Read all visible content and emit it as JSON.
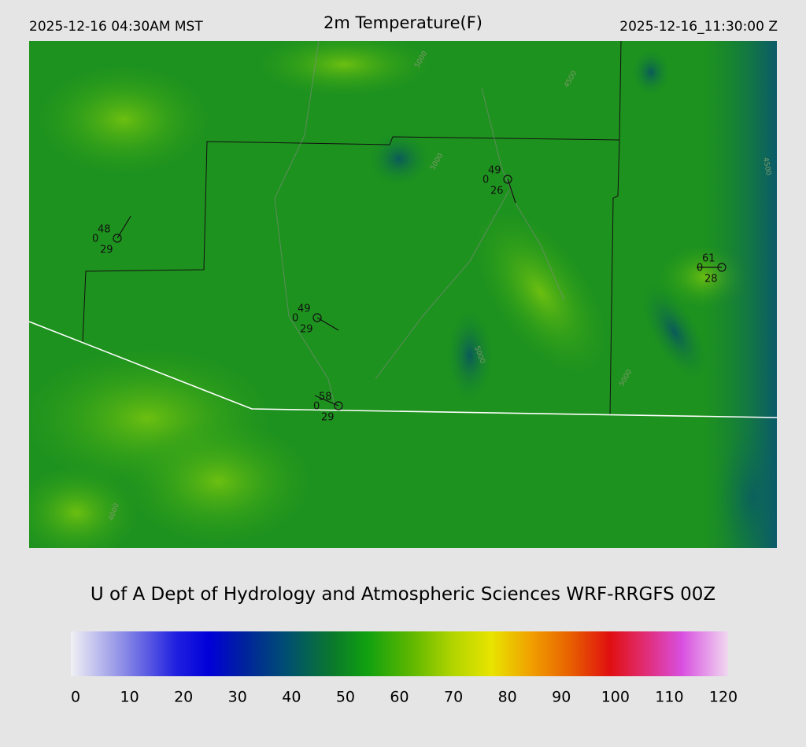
{
  "header": {
    "local_time": "2025-12-16 04:30AM MST",
    "title": "2m Temperature(F)",
    "valid_time": "2025-12-16_11:30:00 Z"
  },
  "stations": [
    {
      "temperature": 48,
      "code": 0,
      "dewpoint": 29
    },
    {
      "temperature": 49,
      "code": 0,
      "dewpoint": 29
    },
    {
      "temperature": 58,
      "code": 0,
      "dewpoint": 29
    },
    {
      "temperature": 49,
      "code": 0,
      "dewpoint": 26
    },
    {
      "temperature": 61,
      "code": 0,
      "dewpoint": 28
    }
  ],
  "contour_labels": [
    "5000",
    "4500",
    "5000",
    "5000",
    "4500",
    "5000",
    "4000"
  ],
  "credit": "U of A Dept of Hydrology and Atmospheric Sciences WRF-RRGFS 00Z",
  "colorbar": {
    "ticks": [
      0,
      10,
      20,
      30,
      40,
      50,
      60,
      70,
      80,
      90,
      100,
      110,
      120
    ]
  }
}
